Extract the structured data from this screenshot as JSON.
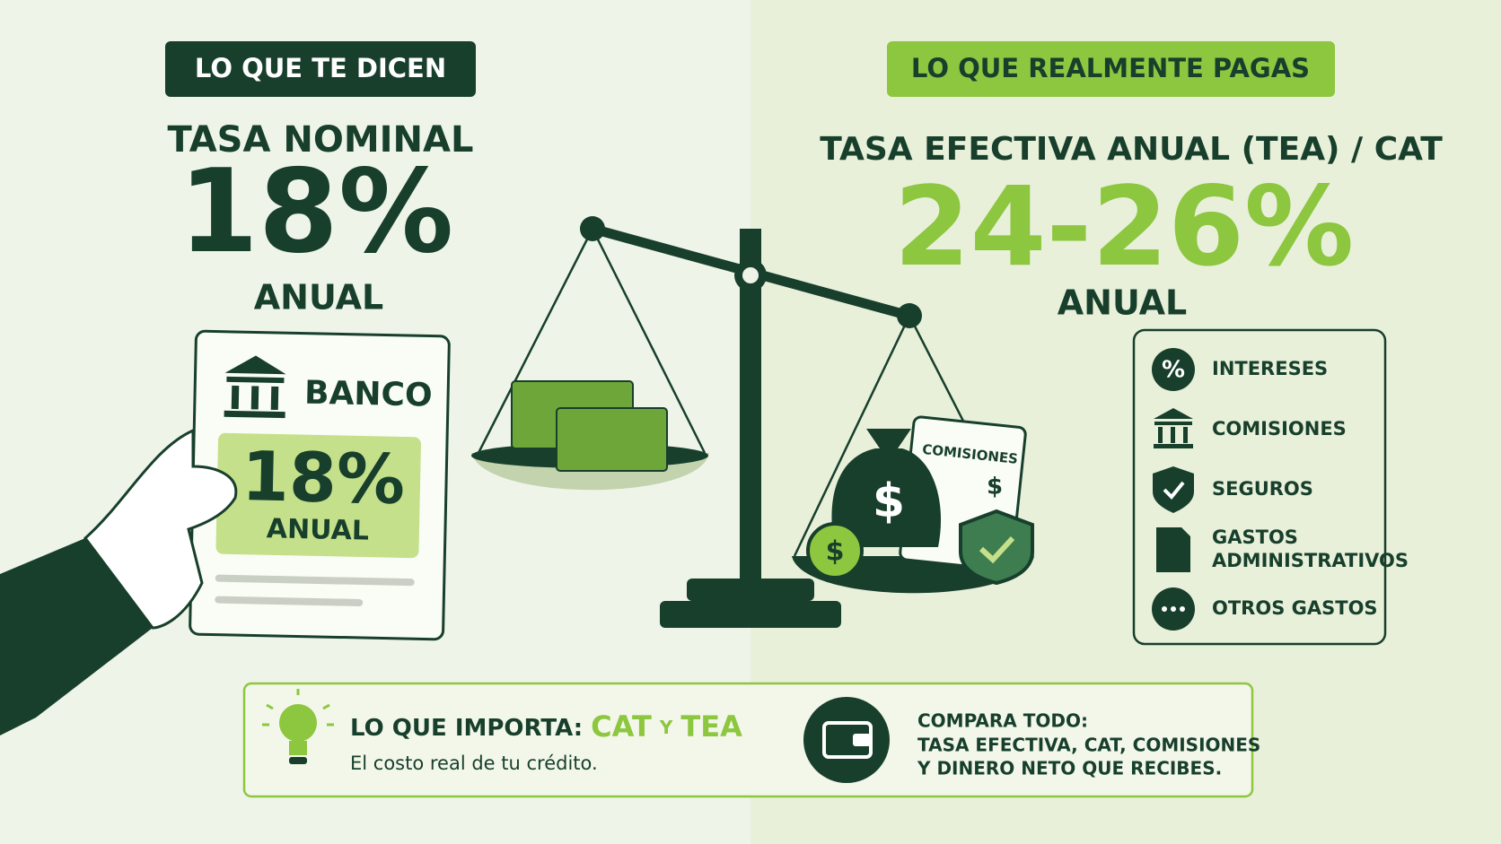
{
  "left": {
    "badge": "LO QUE TE DICEN",
    "heading": "TASA NOMINAL",
    "rate": "18%",
    "period": "ANUAL",
    "card": {
      "bank": "BANCO",
      "rate": "18%",
      "period": "ANUAL"
    }
  },
  "right": {
    "badge": "LO QUE REALMENTE PAGAS",
    "heading": "TASA EFECTIVA ANUAL (TEA) / CAT",
    "rate": "24-26%",
    "period": "ANUAL",
    "costs": [
      {
        "icon": "%",
        "label": "INTERESES"
      },
      {
        "label": "COMISIONES"
      },
      {
        "label": "SEGUROS"
      },
      {
        "label": [
          "GASTOS",
          "ADMINISTRATIVOS"
        ]
      },
      {
        "label": "OTROS GASTOS"
      }
    ]
  },
  "scale": {
    "document": "COMISIONES",
    "document_symbol": "$",
    "bag_symbol": "$",
    "coin_symbol": "$"
  },
  "footer": {
    "important": {
      "label": "LO QUE IMPORTA:",
      "first": "CAT",
      "connector": "Y",
      "second": "TEA",
      "note": "El costo real de tu crédito."
    },
    "compare": {
      "title": "COMPARA TODO:",
      "lines": [
        "TASA EFECTIVA, CAT, COMISIONES",
        "Y DINERO NETO QUE RECIBES."
      ]
    }
  }
}
